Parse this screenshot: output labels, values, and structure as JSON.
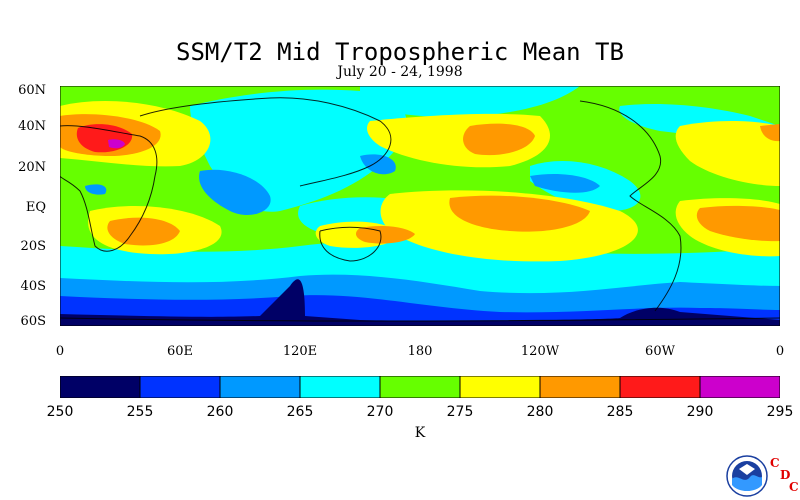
{
  "title": "SSM/T2 Mid Tropospheric Mean TB",
  "subtitle": "July 20 - 24, 1998",
  "lat_labels": [
    "60N",
    "40N",
    "20N",
    "EQ",
    "20S",
    "40S",
    "60S"
  ],
  "lon_labels": [
    "0",
    "60E",
    "120E",
    "180",
    "120W",
    "60W",
    "0"
  ],
  "legend": {
    "values": [
      "250",
      "255",
      "260",
      "265",
      "270",
      "275",
      "280",
      "285",
      "290",
      "295"
    ],
    "colors": [
      "#000066",
      "#0033ff",
      "#0099ff",
      "#00ffff",
      "#66ff00",
      "#ffff00",
      "#ff9900",
      "#ff1a1a",
      "#cc00cc"
    ],
    "unit": "K"
  },
  "logo": {
    "name": "NOAA",
    "letters": [
      "C",
      "D",
      "C"
    ]
  }
}
